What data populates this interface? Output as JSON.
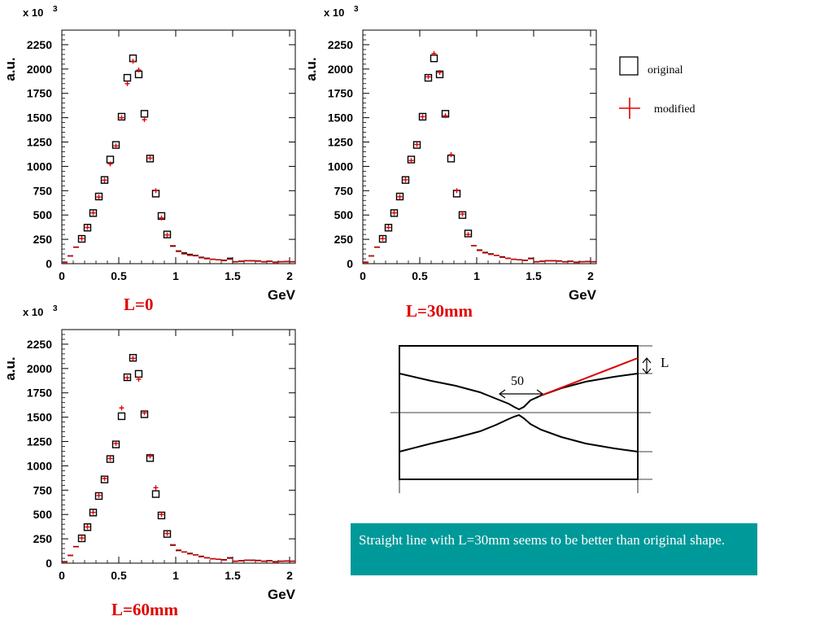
{
  "chart_data": [
    {
      "type": "scatter",
      "title": "",
      "caption": "L=0",
      "xlabel": "GeV",
      "ylabel": "a.u.",
      "scale_label_prefix": "x 10",
      "scale_label_exp": "3",
      "xlim": [
        0,
        2.05
      ],
      "ylim": [
        0,
        2400
      ],
      "xticks": [
        0,
        0.5,
        1,
        1.5,
        2
      ],
      "xtick_labels": [
        "0",
        "0.5",
        "1",
        "1.5",
        "2"
      ],
      "yticks": [
        0,
        250,
        500,
        750,
        1000,
        1250,
        1500,
        1750,
        2000,
        2250
      ],
      "ytick_labels": [
        "0",
        "250",
        "500",
        "750",
        "1000",
        "1250",
        "1500",
        "1750",
        "2000",
        "2250"
      ],
      "x": [
        0.025,
        0.075,
        0.125,
        0.175,
        0.225,
        0.275,
        0.325,
        0.375,
        0.425,
        0.475,
        0.525,
        0.575,
        0.625,
        0.675,
        0.725,
        0.775,
        0.825,
        0.875,
        0.925,
        0.975,
        1.025,
        1.075,
        1.125,
        1.175,
        1.225,
        1.275,
        1.325,
        1.375,
        1.425,
        1.475,
        1.525,
        1.575,
        1.625,
        1.675,
        1.725,
        1.775,
        1.825,
        1.875,
        1.925,
        1.975,
        2.025
      ],
      "series": [
        {
          "name": "original",
          "values": [
            15,
            80,
            170,
            255,
            370,
            520,
            690,
            860,
            1070,
            1220,
            1510,
            1910,
            2110,
            1945,
            1540,
            1080,
            720,
            490,
            300,
            180,
            130,
            110,
            95,
            85,
            65,
            55,
            45,
            40,
            35,
            55,
            20,
            25,
            30,
            30,
            28,
            20,
            25,
            15,
            20,
            22,
            20
          ]
        },
        {
          "name": "modified",
          "values": [
            12,
            78,
            168,
            258,
            372,
            522,
            685,
            858,
            1025,
            1210,
            1500,
            1850,
            2080,
            1990,
            1480,
            1085,
            750,
            470,
            295,
            185,
            125,
            100,
            85,
            80,
            60,
            50,
            45,
            40,
            30,
            45,
            18,
            22,
            30,
            28,
            25,
            18,
            22,
            12,
            18,
            20,
            18
          ]
        }
      ]
    },
    {
      "type": "scatter",
      "title": "",
      "caption": "L=30mm",
      "xlabel": "GeV",
      "ylabel": "a.u.",
      "scale_label_prefix": "x 10",
      "scale_label_exp": "3",
      "xlim": [
        0,
        2.05
      ],
      "ylim": [
        0,
        2400
      ],
      "xticks": [
        0,
        0.5,
        1,
        1.5,
        2
      ],
      "xtick_labels": [
        "0",
        "0.5",
        "1",
        "1.5",
        "2"
      ],
      "yticks": [
        0,
        250,
        500,
        750,
        1000,
        1250,
        1500,
        1750,
        2000,
        2250
      ],
      "ytick_labels": [
        "0",
        "250",
        "500",
        "750",
        "1000",
        "1250",
        "1500",
        "1750",
        "2000",
        "2250"
      ],
      "x": [
        0.025,
        0.075,
        0.125,
        0.175,
        0.225,
        0.275,
        0.325,
        0.375,
        0.425,
        0.475,
        0.525,
        0.575,
        0.625,
        0.675,
        0.725,
        0.775,
        0.825,
        0.875,
        0.925,
        0.975,
        1.025,
        1.075,
        1.125,
        1.175,
        1.225,
        1.275,
        1.325,
        1.375,
        1.425,
        1.475,
        1.525,
        1.575,
        1.625,
        1.675,
        1.725,
        1.775,
        1.825,
        1.875,
        1.925,
        1.975,
        2.025
      ],
      "series": [
        {
          "name": "original",
          "values": [
            15,
            80,
            170,
            255,
            370,
            520,
            690,
            860,
            1070,
            1220,
            1510,
            1910,
            2110,
            1945,
            1540,
            1080,
            720,
            500,
            310,
            185,
            140,
            115,
            100,
            85,
            70,
            55,
            45,
            40,
            35,
            55,
            20,
            25,
            30,
            30,
            28,
            20,
            25,
            15,
            20,
            22,
            20
          ]
        },
        {
          "name": "modified",
          "values": [
            12,
            78,
            168,
            258,
            372,
            522,
            688,
            862,
            1060,
            1225,
            1510,
            1920,
            2160,
            1965,
            1520,
            1120,
            750,
            510,
            300,
            185,
            135,
            110,
            95,
            85,
            65,
            55,
            45,
            40,
            32,
            50,
            18,
            22,
            30,
            28,
            25,
            18,
            22,
            12,
            18,
            20,
            18
          ]
        }
      ]
    },
    {
      "type": "scatter",
      "title": "",
      "caption": "L=60mm",
      "xlabel": "GeV",
      "ylabel": "a.u.",
      "scale_label_prefix": "x 10",
      "scale_label_exp": "3",
      "xlim": [
        0,
        2.05
      ],
      "ylim": [
        0,
        2400
      ],
      "xticks": [
        0,
        0.5,
        1,
        1.5,
        2
      ],
      "xtick_labels": [
        "0",
        "0.5",
        "1",
        "1.5",
        "2"
      ],
      "yticks": [
        0,
        250,
        500,
        750,
        1000,
        1250,
        1500,
        1750,
        2000,
        2250
      ],
      "ytick_labels": [
        "0",
        "250",
        "500",
        "750",
        "1000",
        "1250",
        "1500",
        "1750",
        "2000",
        "2250"
      ],
      "x": [
        0.025,
        0.075,
        0.125,
        0.175,
        0.225,
        0.275,
        0.325,
        0.375,
        0.425,
        0.475,
        0.525,
        0.575,
        0.625,
        0.675,
        0.725,
        0.775,
        0.825,
        0.875,
        0.925,
        0.975,
        1.025,
        1.075,
        1.125,
        1.175,
        1.225,
        1.275,
        1.325,
        1.375,
        1.425,
        1.475,
        1.525,
        1.575,
        1.625,
        1.675,
        1.725,
        1.775,
        1.825,
        1.875,
        1.925,
        1.975,
        2.025
      ],
      "series": [
        {
          "name": "original",
          "values": [
            15,
            80,
            170,
            255,
            370,
            520,
            690,
            860,
            1070,
            1220,
            1510,
            1910,
            2110,
            1945,
            1530,
            1080,
            710,
            490,
            300,
            185,
            130,
            115,
            100,
            85,
            70,
            55,
            45,
            40,
            35,
            55,
            20,
            25,
            30,
            30,
            28,
            20,
            25,
            15,
            20,
            22,
            20
          ]
        },
        {
          "name": "modified",
          "values": [
            12,
            78,
            168,
            258,
            372,
            522,
            695,
            870,
            1075,
            1230,
            1595,
            1905,
            2105,
            1890,
            1545,
            1100,
            775,
            500,
            305,
            190,
            135,
            115,
            95,
            85,
            65,
            55,
            45,
            40,
            32,
            50,
            18,
            22,
            30,
            28,
            25,
            18,
            22,
            12,
            18,
            20,
            18
          ]
        }
      ]
    }
  ],
  "legend": {
    "original_label": "original",
    "modified_label": "modified"
  },
  "diagram": {
    "length_label": "50",
    "l_label": "L"
  },
  "note": {
    "text": "Straight line with L=30mm seems to be better than original shape."
  },
  "colors": {
    "original": "#000000",
    "modified": "#e00000",
    "note_background": "#009999",
    "caption": "#e00000"
  }
}
